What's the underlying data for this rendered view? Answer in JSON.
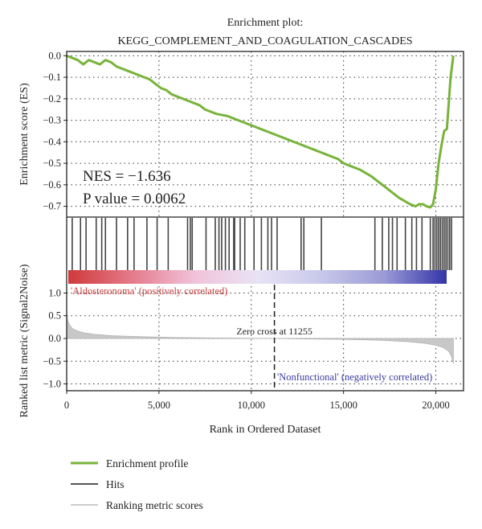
{
  "chart_data": {
    "type": "line",
    "title_line1": "Enrichment plot:",
    "title_line2": "KEGG_COMPLEMENT_AND_COAGULATION_CASCADES",
    "xlabel": "Rank in Ordered Dataset",
    "xlim": [
      0,
      21500
    ],
    "x_ticks": [
      0,
      5000,
      10000,
      15000,
      20000
    ],
    "x_tick_labels": [
      "0",
      "5,000",
      "10,000",
      "15,000",
      "20,000"
    ],
    "top_panel": {
      "ylabel": "Enrichment score (ES)",
      "ylim": [
        -0.75,
        0.02
      ],
      "y_ticks": [
        0.0,
        -0.1,
        -0.2,
        -0.3,
        -0.4,
        -0.5,
        -0.6,
        -0.7
      ],
      "y_tick_labels": [
        "0.0",
        "−0.1",
        "−0.2",
        "−0.3",
        "−0.4",
        "−0.5",
        "−0.6",
        "−0.7"
      ],
      "nes_text": "NES = −1.636",
      "pvalue_text": "P value = 0.0062",
      "es_profile": {
        "x": [
          0,
          600,
          900,
          1200,
          1500,
          1800,
          2100,
          2400,
          2700,
          3000,
          3300,
          3600,
          3900,
          4200,
          4500,
          4800,
          5100,
          5400,
          5700,
          6000,
          6300,
          6600,
          6900,
          7200,
          7500,
          7800,
          8100,
          8400,
          8700,
          9000,
          9300,
          9600,
          9900,
          10200,
          10500,
          10800,
          11100,
          11400,
          11700,
          12000,
          12300,
          12600,
          12900,
          13200,
          13500,
          13800,
          14100,
          14400,
          14700,
          15000,
          15300,
          15600,
          15900,
          16200,
          16500,
          16800,
          17100,
          17400,
          17700,
          18000,
          18300,
          18600,
          18900,
          19100,
          19300,
          19500,
          19700,
          19850,
          20000,
          20150,
          20300,
          20450,
          20600,
          20800,
          20950
        ],
        "y": [
          0.0,
          -0.02,
          -0.04,
          -0.02,
          -0.03,
          -0.04,
          -0.02,
          -0.03,
          -0.05,
          -0.06,
          -0.07,
          -0.08,
          -0.09,
          -0.1,
          -0.11,
          -0.13,
          -0.15,
          -0.16,
          -0.18,
          -0.19,
          -0.2,
          -0.21,
          -0.22,
          -0.23,
          -0.25,
          -0.26,
          -0.27,
          -0.275,
          -0.28,
          -0.29,
          -0.3,
          -0.31,
          -0.32,
          -0.33,
          -0.34,
          -0.35,
          -0.36,
          -0.37,
          -0.38,
          -0.39,
          -0.4,
          -0.41,
          -0.42,
          -0.43,
          -0.44,
          -0.45,
          -0.46,
          -0.47,
          -0.48,
          -0.5,
          -0.51,
          -0.52,
          -0.53,
          -0.545,
          -0.56,
          -0.58,
          -0.6,
          -0.62,
          -0.64,
          -0.66,
          -0.675,
          -0.69,
          -0.7,
          -0.69,
          -0.69,
          -0.7,
          -0.705,
          -0.69,
          -0.62,
          -0.5,
          -0.42,
          -0.35,
          -0.34,
          -0.1,
          0.0
        ]
      }
    },
    "hits_panel": {
      "hit_positions": [
        300,
        750,
        1050,
        1600,
        1900,
        2100,
        2700,
        3300,
        3650,
        4350,
        4900,
        5500,
        6550,
        6700,
        6800,
        7550,
        8050,
        8250,
        8400,
        8600,
        8800,
        9050,
        9100,
        9400,
        9650,
        10150,
        10550,
        10900,
        11100,
        11400,
        12700,
        12850,
        13800,
        16700,
        17100,
        17450,
        17650,
        17900,
        18350,
        18700,
        18950,
        19250,
        19700,
        19850,
        19950,
        20050,
        20150,
        20250,
        20350,
        20450,
        20550,
        20650,
        20750,
        20850
      ],
      "gradient_colors": [
        "#cf3a3a",
        "#e47a8a",
        "#f1c2da",
        "#e8e3f5",
        "#c8c8ea",
        "#9b9bd6",
        "#3434a8"
      ]
    },
    "rank_panel": {
      "ylabel": "Ranked list metric (Signal2Noise)",
      "ylim": [
        -1.15,
        1.15
      ],
      "y_ticks": [
        1.0,
        0.5,
        0.0,
        -0.5,
        -1.0
      ],
      "y_tick_labels": [
        "1.0",
        "0.5",
        "0.0",
        "−0.5",
        "−1.0"
      ],
      "zero_cross": 11255,
      "zero_cross_label": "Zero cross at 11255",
      "positive_label": "'Aldosteronoma' (positively correlated)",
      "negative_label": "'Nonfunctional' (negatively correlated)",
      "metric_curve": {
        "x": [
          0,
          50,
          150,
          300,
          600,
          1000,
          1500,
          2500,
          4000,
          6000,
          8000,
          10000,
          11255,
          13000,
          15000,
          17000,
          18500,
          19500,
          20000,
          20400,
          20700,
          20850,
          20950
        ],
        "y": [
          0.55,
          0.4,
          0.3,
          0.22,
          0.16,
          0.12,
          0.09,
          0.06,
          0.04,
          0.02,
          0.01,
          0.003,
          0.0,
          -0.01,
          -0.02,
          -0.04,
          -0.07,
          -0.11,
          -0.15,
          -0.2,
          -0.28,
          -0.4,
          -0.55
        ]
      }
    },
    "legend": {
      "placement": "bottom-left",
      "entries": [
        {
          "name": "Enrichment profile",
          "color": "#78b33a"
        },
        {
          "name": "Hits",
          "color": "#555555"
        },
        {
          "name": "Ranking metric scores",
          "color": "#bbbbbb"
        }
      ]
    },
    "grid": true
  }
}
